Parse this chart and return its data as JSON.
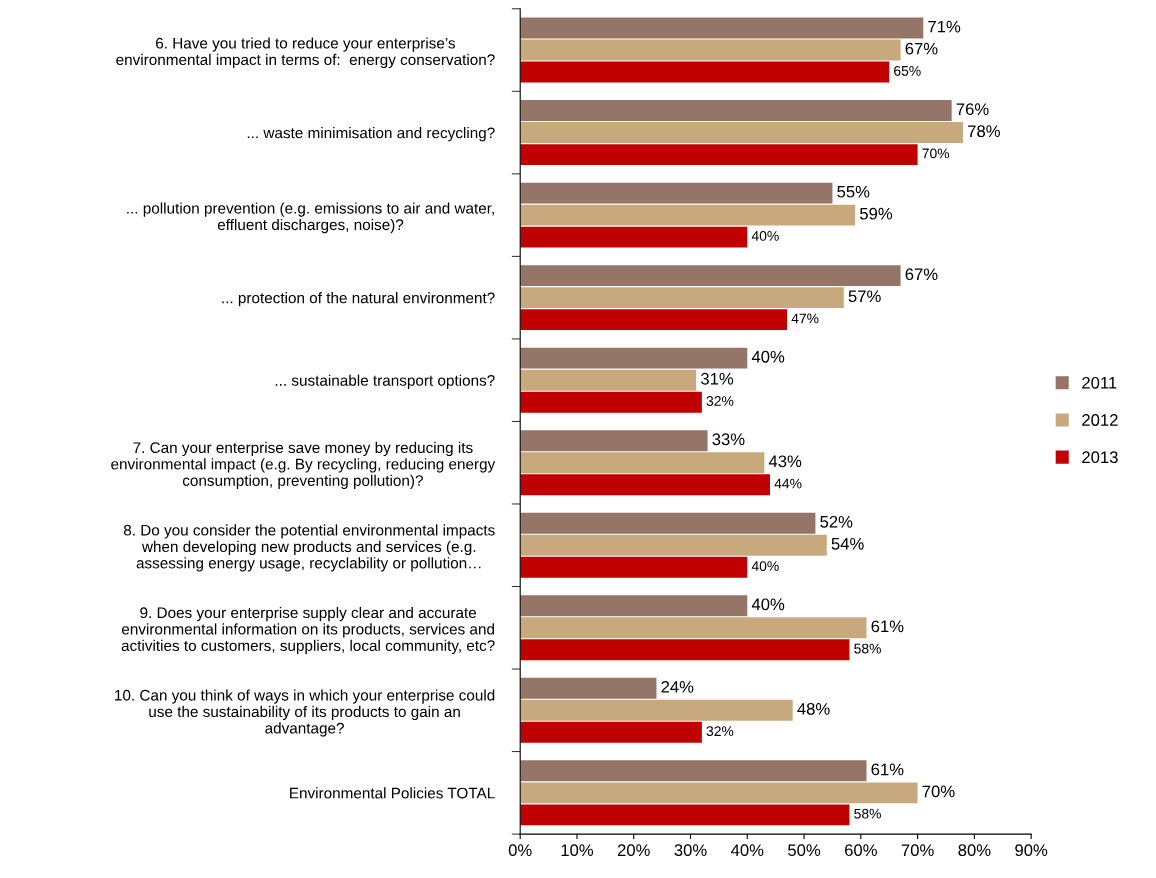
{
  "chart_data": {
    "type": "bar",
    "orientation": "horizontal",
    "categories": [
      "6. Have you tried to reduce your enterprise’s\nenvironmental impact in terms of:  energy conservation?",
      "... waste minimisation and recycling?",
      "... pollution prevention (e.g. emissions to air and water,\neffluent discharges, noise)?",
      "... protection of the natural environment?",
      "... sustainable transport options?",
      "7. Can your enterprise save money by reducing its\nenvironmental impact (e.g. By recycling, reducing energy\nconsumption, preventing pollution)?",
      "8. Do you consider the potential environmental impacts\nwhen developing new products and services (e.g.\nassessing energy usage, recyclability or pollution…",
      "9. Does your enterprise supply clear and accurate\nenvironmental information on its products, services and\nactivities to customers, suppliers, local community, etc?",
      "10. Can you think of ways in which your enterprise could\nuse the sustainability of its products to gain an\nadvantage?",
      "Environmental Policies TOTAL"
    ],
    "series": [
      {
        "name": "2011",
        "color": "#967569",
        "values": [
          71,
          76,
          55,
          67,
          40,
          33,
          52,
          40,
          24,
          61
        ],
        "value_labels": [
          "71%",
          "76%",
          "55%",
          "67%",
          "40%",
          "33%",
          "52%",
          "40%",
          "24%",
          "61%"
        ]
      },
      {
        "name": "2012",
        "color": "#c8a97e",
        "values": [
          67,
          78,
          59,
          57,
          31,
          43,
          54,
          61,
          48,
          70
        ],
        "value_labels": [
          "67%",
          "78%",
          "59%",
          "57%",
          "31%",
          "43%",
          "54%",
          "61%",
          "48%",
          "70%"
        ]
      },
      {
        "name": "2013",
        "color": "#c00000",
        "values": [
          65,
          70,
          40,
          47,
          32,
          44,
          40,
          58,
          32,
          58
        ],
        "value_labels": [
          "65%",
          "70%",
          "40%",
          "47%",
          "32%",
          "44%",
          "40%",
          "58%",
          "32%",
          "58%"
        ]
      }
    ],
    "xlim": [
      0,
      90
    ],
    "xticks": [
      {
        "value": 0,
        "label": "0%"
      },
      {
        "value": 10,
        "label": "10%"
      },
      {
        "value": 20,
        "label": "20%"
      },
      {
        "value": 30,
        "label": "30%"
      },
      {
        "value": 40,
        "label": "40%"
      },
      {
        "value": 50,
        "label": "50%"
      },
      {
        "value": 60,
        "label": "60%"
      },
      {
        "value": 70,
        "label": "70%"
      },
      {
        "value": 80,
        "label": "80%"
      },
      {
        "value": 90,
        "label": "90%"
      }
    ],
    "legend": "right",
    "grid": false
  }
}
